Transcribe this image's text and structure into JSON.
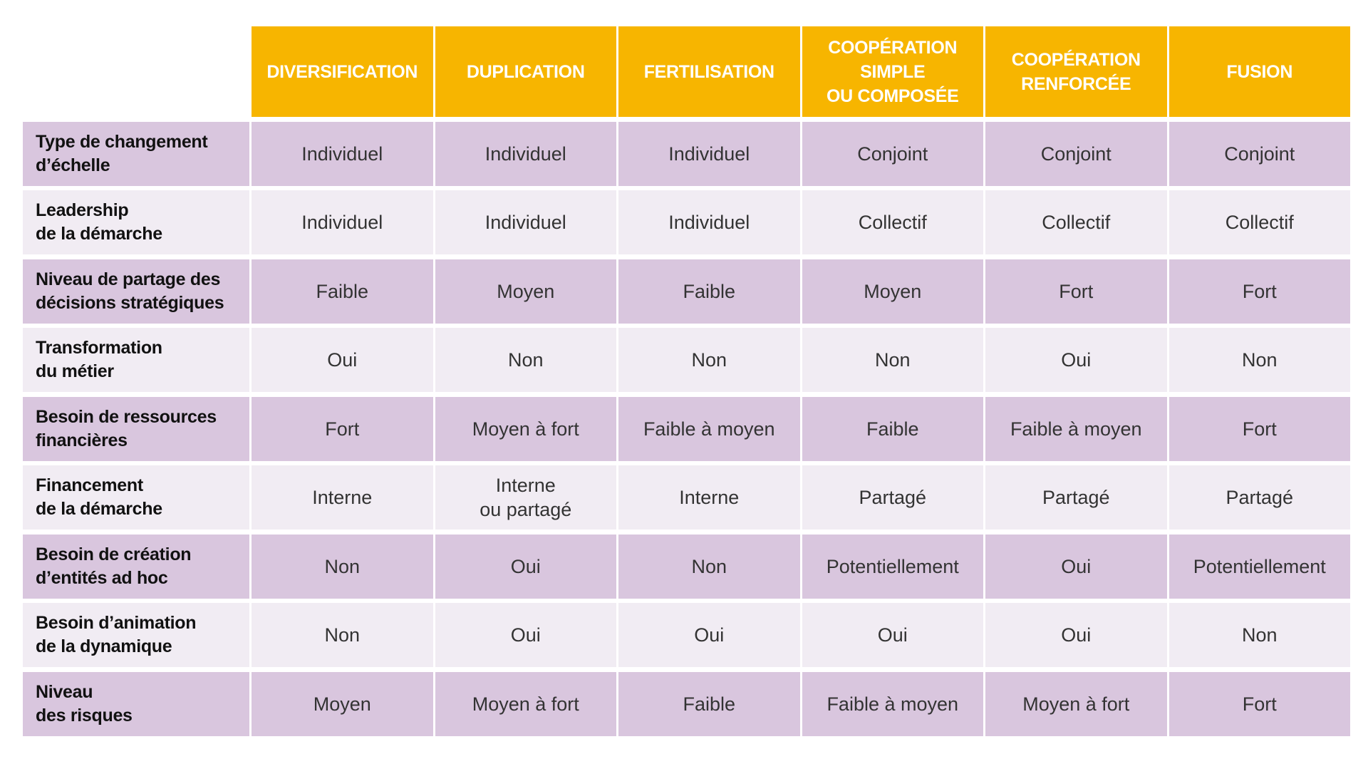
{
  "colors": {
    "header": "#F7B500",
    "row_dark": "#D9C6DE",
    "row_light": "#F1ECF3"
  },
  "columns": [
    "DIVERSIFICATION",
    "DUPLICATION",
    "FERTILISATION",
    "COOPÉRATION\nSIMPLE\nOU COMPOSÉE",
    "COOPÉRATION\nRENFORCÉE",
    "FUSION"
  ],
  "rows": [
    {
      "label": "Type de changement\nd’échelle",
      "values": [
        "Individuel",
        "Individuel",
        "Individuel",
        "Conjoint",
        "Conjoint",
        "Conjoint"
      ]
    },
    {
      "label": "Leadership\nde la démarche",
      "values": [
        "Individuel",
        "Individuel",
        "Individuel",
        "Collectif",
        "Collectif",
        "Collectif"
      ]
    },
    {
      "label": "Niveau de partage des\ndécisions stratégiques",
      "values": [
        "Faible",
        "Moyen",
        "Faible",
        "Moyen",
        "Fort",
        "Fort"
      ]
    },
    {
      "label": "Transformation\ndu métier",
      "values": [
        "Oui",
        "Non",
        "Non",
        "Non",
        "Oui",
        "Non"
      ]
    },
    {
      "label": "Besoin de ressources\nfinancières",
      "values": [
        "Fort",
        "Moyen à fort",
        "Faible à moyen",
        "Faible",
        "Faible à moyen",
        "Fort"
      ]
    },
    {
      "label": "Financement\nde la démarche",
      "values": [
        "Interne",
        "Interne\nou partagé",
        "Interne",
        "Partagé",
        "Partagé",
        "Partagé"
      ]
    },
    {
      "label": "Besoin de création\nd’entités ad hoc",
      "values": [
        "Non",
        "Oui",
        "Non",
        "Potentiellement",
        "Oui",
        "Potentiellement"
      ]
    },
    {
      "label": "Besoin d’animation\nde la dynamique",
      "values": [
        "Non",
        "Oui",
        "Oui",
        "Oui",
        "Oui",
        "Non"
      ]
    },
    {
      "label": "Niveau\ndes risques",
      "values": [
        "Moyen",
        "Moyen à fort",
        "Faible",
        "Faible à moyen",
        "Moyen à fort",
        "Fort"
      ]
    }
  ]
}
